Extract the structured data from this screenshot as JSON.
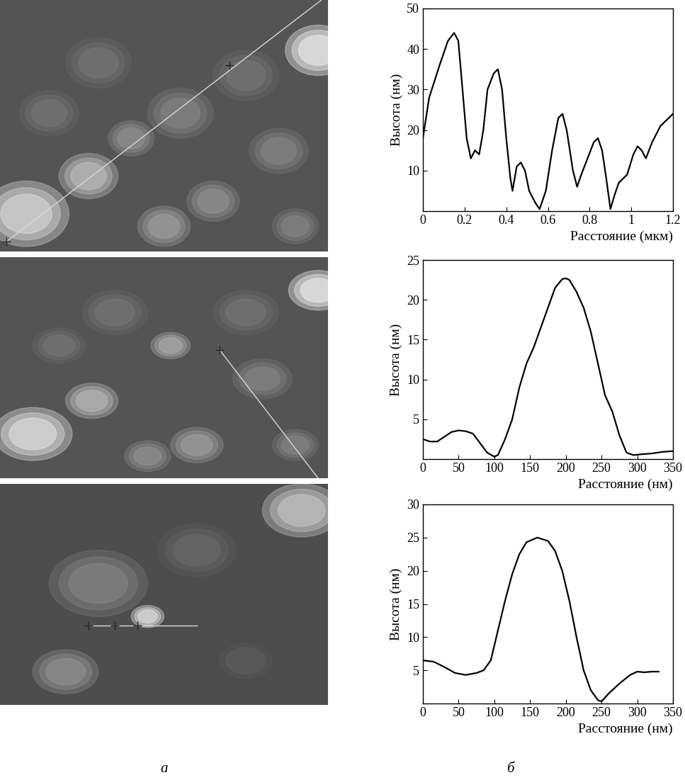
{
  "chart_data": [
    {
      "type": "line",
      "x_label": "Расстояние (мкм)",
      "y_label": "Высота (нм)",
      "x": [
        0,
        0.03,
        0.08,
        0.12,
        0.15,
        0.17,
        0.19,
        0.21,
        0.23,
        0.25,
        0.27,
        0.29,
        0.31,
        0.34,
        0.36,
        0.38,
        0.4,
        0.42,
        0.43,
        0.45,
        0.47,
        0.49,
        0.51,
        0.54,
        0.56,
        0.59,
        0.62,
        0.65,
        0.67,
        0.69,
        0.72,
        0.74,
        0.76,
        0.79,
        0.82,
        0.84,
        0.86,
        0.88,
        0.9,
        0.92,
        0.94,
        0.96,
        0.98,
        1.01,
        1.03,
        1.05,
        1.07,
        1.1,
        1.14,
        1.18,
        1.2
      ],
      "values": [
        18,
        28,
        36,
        42,
        44,
        42,
        30,
        18,
        13,
        15,
        14,
        20,
        30,
        34,
        35,
        30,
        18,
        8,
        5,
        11,
        12,
        10,
        5,
        2,
        0.5,
        5,
        15,
        23,
        24,
        20,
        10,
        6,
        9,
        13,
        17,
        18,
        15,
        8,
        0.5,
        4,
        7,
        8,
        9,
        14,
        16,
        15,
        13,
        17,
        21,
        23,
        24
      ],
      "color": "#000000",
      "xlim": [
        0,
        1.2
      ],
      "xticks": [
        0,
        0.2,
        0.4,
        0.6,
        0.8,
        1,
        1.2
      ],
      "ylim": [
        0,
        50
      ],
      "yticks": [
        10,
        20,
        30,
        40,
        50
      ]
    },
    {
      "type": "line",
      "x_label": "Расстояние (нм)",
      "y_label": "Высота (нм)",
      "x": [
        0,
        10,
        20,
        30,
        40,
        50,
        60,
        70,
        80,
        90,
        100,
        105,
        115,
        125,
        135,
        145,
        155,
        165,
        175,
        185,
        195,
        200,
        205,
        215,
        225,
        235,
        245,
        255,
        265,
        275,
        285,
        295,
        305,
        320,
        335,
        350
      ],
      "values": [
        2.5,
        2.2,
        2.2,
        2.8,
        3.4,
        3.6,
        3.5,
        3.2,
        2,
        0.8,
        0.3,
        0.5,
        2.5,
        5,
        9,
        12,
        14,
        16.5,
        19,
        21.5,
        22.6,
        22.7,
        22.5,
        21,
        19,
        16,
        12,
        8,
        6,
        3,
        0.8,
        0.5,
        0.6,
        0.7,
        0.9,
        1
      ],
      "color": "#000000",
      "xlim": [
        0,
        350
      ],
      "xticks": [
        0,
        50,
        100,
        150,
        200,
        250,
        300,
        350
      ],
      "ylim": [
        0,
        25
      ],
      "yticks": [
        5,
        10,
        15,
        20,
        25
      ]
    },
    {
      "type": "line",
      "x_label": "Расстояние (нм)",
      "y_label": "Высота (нм)",
      "x": [
        0,
        15,
        30,
        45,
        60,
        75,
        85,
        95,
        105,
        115,
        125,
        135,
        145,
        160,
        175,
        185,
        195,
        205,
        215,
        225,
        235,
        245,
        250,
        260,
        275,
        290,
        300,
        310,
        320,
        330
      ],
      "values": [
        6.5,
        6.3,
        5.5,
        4.6,
        4.3,
        4.6,
        5,
        6.5,
        11,
        15.5,
        19.5,
        22.5,
        24.3,
        25,
        24.5,
        23,
        20,
        15.5,
        10,
        5,
        2,
        0.5,
        0.3,
        1.5,
        3,
        4.3,
        4.8,
        4.7,
        4.8,
        4.8
      ],
      "color": "#000000",
      "xlim": [
        0,
        350
      ],
      "xticks": [
        0,
        50,
        100,
        150,
        200,
        250,
        300,
        350
      ],
      "ylim": [
        0,
        30
      ],
      "yticks": [
        5,
        10,
        15,
        20,
        25,
        30
      ]
    }
  ],
  "panel_labels": [
    "а",
    "б"
  ]
}
